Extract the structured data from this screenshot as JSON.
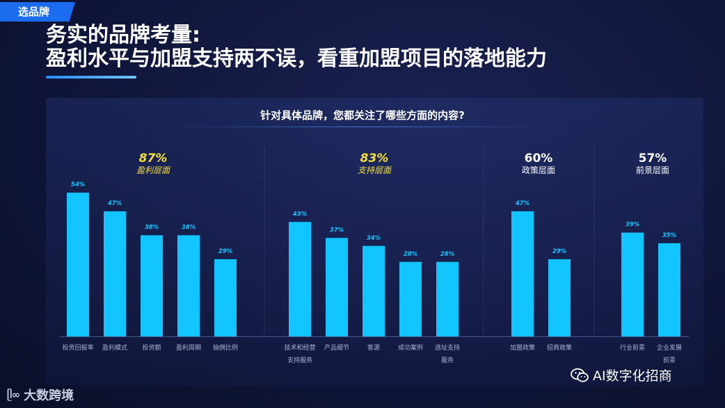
{
  "tag": "选品牌",
  "title_line1": "务实的品牌考量:",
  "title_line2": "盈利水平与加盟支持两不误，看重加盟项目的落地能力",
  "question": "针对具体品牌，您都关注了哪些方面的内容?",
  "footer_brand": "大数跨境",
  "wechat_name": "AI数字化招商",
  "colors": {
    "bar": "#12c4ff",
    "highlight_pct": "#f5e03a",
    "muted_pct": "#ffffff",
    "label": "#a9b3d6"
  },
  "chart_data": {
    "type": "bar",
    "groups": [
      {
        "total": "87%",
        "name": "盈利层面",
        "highlight": true,
        "items": [
          {
            "label": [
              "投资回报率"
            ],
            "value": 54,
            "value_label": "54%"
          },
          {
            "label": [
              "盈利模式"
            ],
            "value": 47,
            "value_label": "47%"
          },
          {
            "label": [
              "投资额"
            ],
            "value": 38,
            "value_label": "38%"
          },
          {
            "label": [
              "盈利周期"
            ],
            "value": 38,
            "value_label": "38%"
          },
          {
            "label": [
              "抽佣比例"
            ],
            "value": 29,
            "value_label": "29%"
          }
        ]
      },
      {
        "total": "83%",
        "name": "支持层面",
        "highlight": true,
        "items": [
          {
            "label": [
              "技术和经营",
              "支持服务"
            ],
            "value": 43,
            "value_label": "43%"
          },
          {
            "label": [
              "产品细节"
            ],
            "value": 37,
            "value_label": "37%"
          },
          {
            "label": [
              "客源"
            ],
            "value": 34,
            "value_label": "34%"
          },
          {
            "label": [
              "成功案例"
            ],
            "value": 28,
            "value_label": "28%"
          },
          {
            "label": [
              "选址支持",
              "服务"
            ],
            "value": 28,
            "value_label": "28%"
          }
        ]
      },
      {
        "total": "60%",
        "name": "政策层面",
        "highlight": false,
        "items": [
          {
            "label": [
              "加盟政策"
            ],
            "value": 47,
            "value_label": "47%"
          },
          {
            "label": [
              "招商政策"
            ],
            "value": 29,
            "value_label": "29%"
          }
        ]
      },
      {
        "total": "57%",
        "name": "前景层面",
        "highlight": false,
        "items": [
          {
            "label": [
              "行业前景"
            ],
            "value": 39,
            "value_label": "39%"
          },
          {
            "label": [
              "企业发展",
              "前景"
            ],
            "value": 35,
            "value_label": "35%"
          }
        ]
      }
    ]
  }
}
